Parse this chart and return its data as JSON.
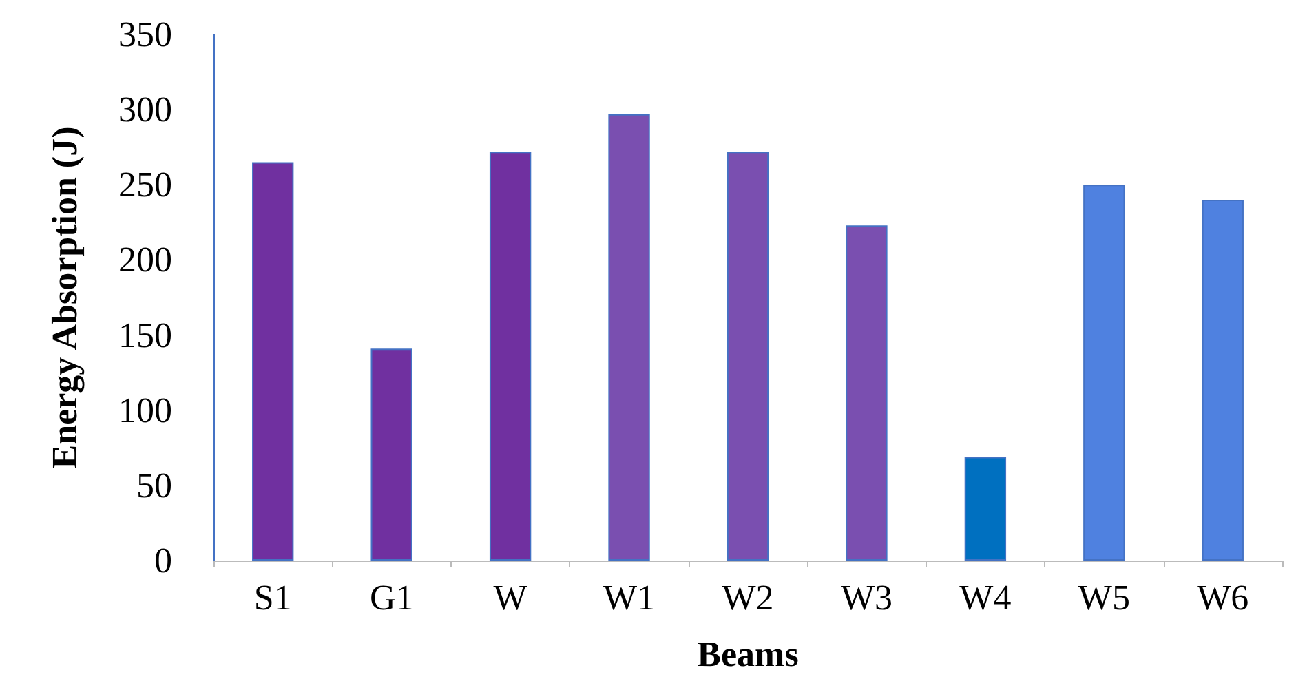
{
  "chart_data": {
    "type": "bar",
    "xlabel": "Beams",
    "ylabel": "Energy Absorption (J)",
    "categories": [
      "S1",
      "G1",
      "W",
      "W1",
      "W2",
      "W3",
      "W4",
      "W5",
      "W6"
    ],
    "values": [
      265,
      141,
      272,
      297,
      272,
      223,
      69,
      250,
      240
    ],
    "colors": [
      "#7030a0",
      "#7030a0",
      "#7030a0",
      "#7a4fb0",
      "#7a4fb0",
      "#7a4fb0",
      "#0070c0",
      "#4f81e0",
      "#4f81e0"
    ],
    "ylim": [
      0,
      350
    ],
    "yticks": [
      0,
      50,
      100,
      150,
      200,
      250,
      300,
      350
    ],
    "grid": false
  }
}
